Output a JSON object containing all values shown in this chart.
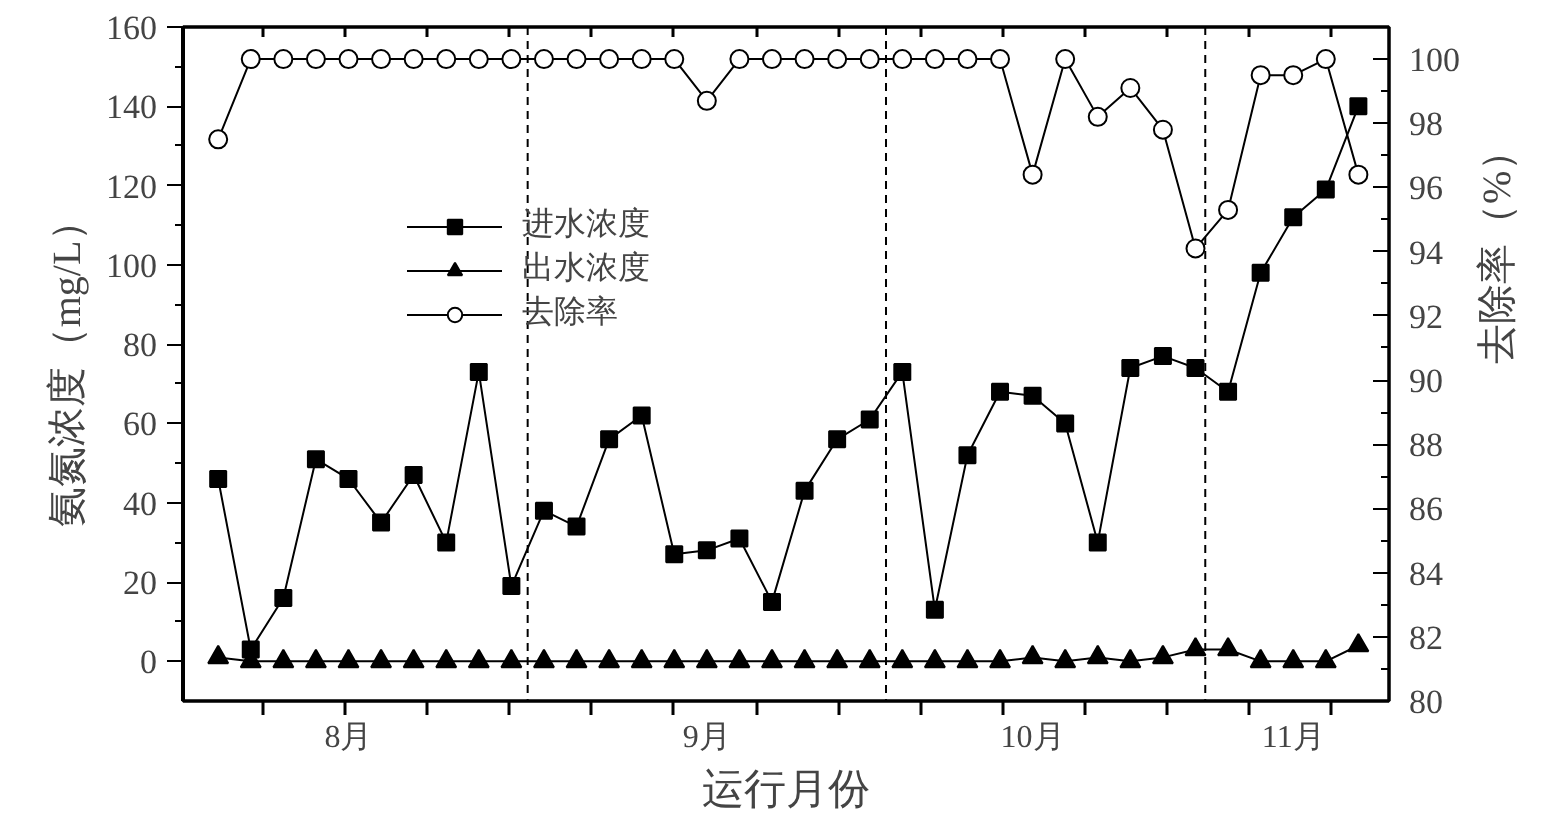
{
  "chart_data": {
    "type": "line",
    "xlabel": "运行月份",
    "ylabel": "氨氮浓度（mg/L）",
    "y2label": "去除率（%）",
    "categories": [
      null,
      null,
      null,
      null,
      "8月",
      null,
      null,
      null,
      null,
      null,
      null,
      null,
      null,
      null,
      null,
      "9月",
      null,
      null,
      null,
      null,
      null,
      null,
      null,
      null,
      null,
      "10月",
      null,
      null,
      null,
      null,
      null,
      null,
      null,
      "11月",
      null,
      null
    ],
    "ylim": [
      -10,
      160
    ],
    "yticks": [
      0,
      20,
      40,
      60,
      80,
      100,
      120,
      140,
      160
    ],
    "y2lim": [
      80,
      101
    ],
    "y2ticks": [
      80,
      82,
      84,
      86,
      88,
      90,
      92,
      94,
      96,
      98,
      100
    ],
    "series": [
      {
        "name": "进水浓度",
        "color": "#000000",
        "marker": "square",
        "values": [
          46,
          3,
          16,
          51,
          46,
          35,
          47,
          30,
          73,
          19,
          38,
          34,
          56,
          62,
          27,
          28,
          31,
          15,
          43,
          56,
          61,
          73,
          13,
          52,
          68,
          67,
          60,
          30,
          74,
          77,
          74,
          68,
          98,
          112,
          119,
          140
        ]
      },
      {
        "name": "出水浓度",
        "color": "#000000",
        "marker": "triangle",
        "values": [
          1,
          0,
          0,
          0,
          0,
          0,
          0,
          0,
          0,
          0,
          0,
          0,
          0,
          0,
          0,
          0,
          0,
          0,
          0,
          0,
          0,
          0,
          0,
          0,
          0,
          1,
          0,
          1,
          0,
          1,
          3,
          3,
          0,
          0,
          0,
          4
        ]
      },
      {
        "name": "去除率",
        "color": "#000000",
        "marker": "circle",
        "axis": "y2",
        "values": [
          97.5,
          100,
          100,
          100,
          100,
          100,
          100,
          100,
          100,
          100,
          100,
          100,
          100,
          100,
          100,
          98.7,
          100,
          100,
          100,
          100,
          100,
          100,
          100,
          100,
          100,
          96.4,
          100,
          98.2,
          99.1,
          97.8,
          94.1,
          95.3,
          99.5,
          99.5,
          100,
          96.4
        ]
      }
    ],
    "line_style": "solid",
    "grid": false,
    "legend": "top left"
  }
}
